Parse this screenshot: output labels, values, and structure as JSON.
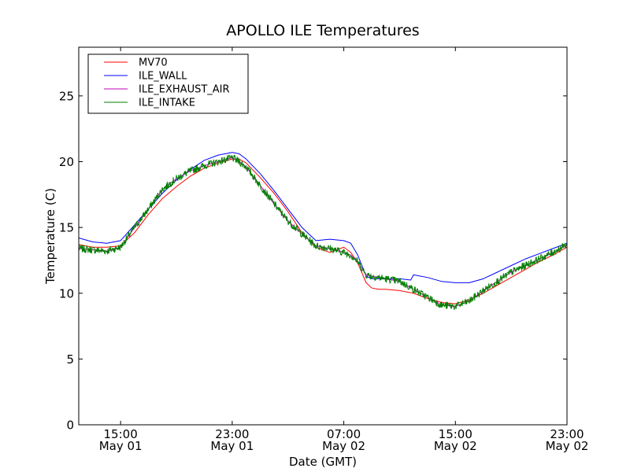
{
  "chart_data": {
    "type": "line",
    "title": "APOLLO ILE Temperatures",
    "xlabel": "Date (GMT)",
    "ylabel": "Temperature (C)",
    "xlim": [
      12,
      47
    ],
    "ylim": [
      0,
      28.7
    ],
    "grid": false,
    "legend_position": "upper-left",
    "x_ticks": [
      {
        "value": 15,
        "time": "15:00",
        "date": "May 01"
      },
      {
        "value": 23,
        "time": "23:00",
        "date": "May 01"
      },
      {
        "value": 31,
        "time": "07:00",
        "date": "May 02"
      },
      {
        "value": 39,
        "time": "15:00",
        "date": "May 02"
      },
      {
        "value": 47,
        "time": "23:00",
        "date": "May 02"
      }
    ],
    "y_ticks": [
      0,
      5,
      10,
      15,
      20,
      25
    ],
    "series": [
      {
        "name": "MV70",
        "color": "#ff0000",
        "noise": 0,
        "x": [
          12,
          13,
          14,
          15,
          16,
          17,
          18,
          19,
          20,
          21,
          22,
          23,
          23.5,
          24,
          25,
          26,
          27,
          28,
          29,
          30,
          31,
          31.5,
          32,
          32.6,
          33,
          33.5,
          34,
          35,
          36,
          37,
          38,
          39,
          40,
          41,
          42,
          43,
          44,
          45,
          46,
          47
        ],
        "y": [
          13.7,
          13.5,
          13.5,
          13.6,
          14.6,
          16.0,
          17.2,
          18.1,
          18.9,
          19.5,
          19.9,
          20.2,
          20.2,
          19.9,
          18.8,
          17.6,
          16.2,
          14.6,
          13.5,
          13.1,
          13.5,
          13.1,
          12.3,
          10.8,
          10.4,
          10.3,
          10.3,
          10.2,
          10.0,
          9.6,
          9.3,
          9.2,
          9.5,
          10.0,
          10.6,
          11.2,
          11.8,
          12.4,
          12.9,
          13.5
        ]
      },
      {
        "name": "ILE_WALL",
        "color": "#0000ff",
        "noise": 0,
        "x": [
          12,
          13,
          14,
          15,
          16,
          17,
          18,
          19,
          20,
          21,
          22,
          23,
          23.5,
          24,
          25,
          26,
          27,
          28,
          29,
          30,
          31,
          31.5,
          32,
          32.6,
          33,
          33.5,
          34,
          35,
          35.8,
          36,
          37,
          38,
          39,
          40,
          41,
          42,
          43,
          44,
          45,
          46,
          47
        ],
        "y": [
          14.2,
          13.9,
          13.8,
          14.0,
          15.2,
          16.4,
          17.6,
          18.6,
          19.4,
          20.1,
          20.5,
          20.7,
          20.6,
          20.2,
          19.1,
          17.8,
          16.4,
          15.0,
          14.0,
          14.1,
          14.0,
          13.8,
          12.9,
          11.3,
          11.1,
          11.1,
          11.1,
          11.1,
          11.0,
          11.4,
          11.2,
          10.9,
          10.8,
          10.8,
          11.1,
          11.6,
          12.1,
          12.6,
          13.0,
          13.4,
          13.8
        ]
      },
      {
        "name": "ILE_EXHAUST_AIR",
        "color": "#bf00bf",
        "noise": 0,
        "x": [
          12,
          13,
          14,
          15,
          16,
          17,
          18,
          19,
          20,
          21,
          22,
          23,
          23.5,
          24,
          25,
          26,
          27,
          28,
          29,
          30,
          31,
          31.5,
          32,
          32.6,
          33,
          34,
          35,
          36,
          37,
          38,
          39,
          40,
          41,
          42,
          43,
          44,
          45,
          46,
          47
        ],
        "y": [
          13.4,
          13.3,
          13.2,
          13.5,
          15.0,
          16.4,
          17.9,
          18.7,
          19.3,
          19.7,
          20.0,
          20.3,
          20.0,
          19.6,
          18.2,
          16.8,
          15.5,
          14.5,
          13.6,
          13.4,
          13.1,
          12.9,
          12.4,
          11.4,
          11.3,
          11.1,
          10.9,
          10.3,
          9.7,
          9.1,
          9.0,
          9.4,
          10.2,
          10.9,
          11.6,
          12.1,
          12.6,
          13.1,
          13.7
        ]
      },
      {
        "name": "ILE_INTAKE",
        "color": "#008000",
        "noise": 0.28,
        "x": [
          12,
          13,
          14,
          15,
          16,
          17,
          18,
          19,
          20,
          21,
          22,
          23,
          23.5,
          24,
          25,
          26,
          27,
          28,
          29,
          30,
          31,
          31.5,
          32,
          32.6,
          33,
          34,
          35,
          36,
          37,
          38,
          39,
          40,
          41,
          42,
          43,
          44,
          45,
          46,
          47
        ],
        "y": [
          13.4,
          13.3,
          13.2,
          13.5,
          15.0,
          16.4,
          17.9,
          18.7,
          19.3,
          19.7,
          20.0,
          20.3,
          20.0,
          19.6,
          18.2,
          16.8,
          15.5,
          14.5,
          13.6,
          13.4,
          13.1,
          12.9,
          12.4,
          11.4,
          11.3,
          11.1,
          10.9,
          10.3,
          9.7,
          9.1,
          9.0,
          9.4,
          10.2,
          10.9,
          11.6,
          12.1,
          12.6,
          13.1,
          13.7
        ]
      }
    ]
  }
}
